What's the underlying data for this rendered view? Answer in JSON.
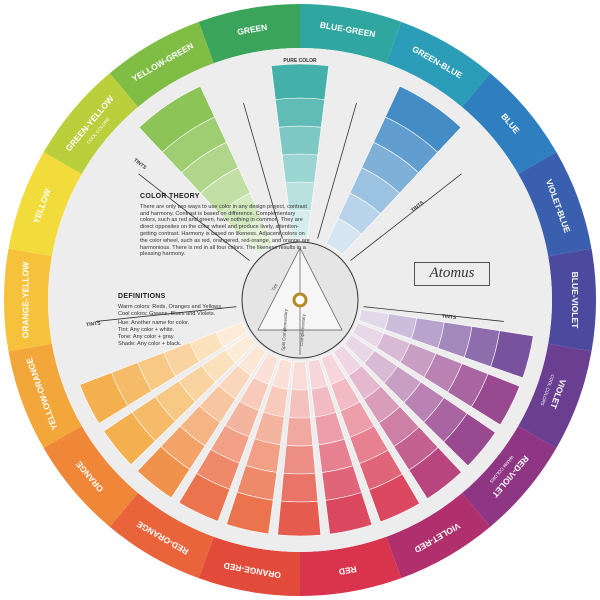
{
  "rim": {
    "segments": [
      {
        "label": "BLUE-GREEN",
        "color": "#2fa7a0"
      },
      {
        "label": "GREEN-BLUE",
        "color": "#2b9db8"
      },
      {
        "label": "BLUE",
        "color": "#2f7fc0"
      },
      {
        "label": "VIOLET-BLUE",
        "color": "#3a5fae"
      },
      {
        "label": "BLUE-VIOLET",
        "color": "#4b4a9e"
      },
      {
        "label": "VIOLET",
        "sublabel": "COOL COLORS",
        "color": "#6a3f92"
      },
      {
        "label": "RED-VIOLET",
        "sublabel": "WARM COLORS",
        "color": "#8e3583"
      },
      {
        "label": "VIOLET-RED",
        "color": "#b0306e"
      },
      {
        "label": "RED",
        "color": "#d8344d"
      },
      {
        "label": "ORANGE-RED",
        "color": "#e24a3a"
      },
      {
        "label": "RED-ORANGE",
        "color": "#e9643a"
      },
      {
        "label": "ORANGE",
        "color": "#ef8638"
      },
      {
        "label": "YELLOW-ORANGE",
        "color": "#f3a63a"
      },
      {
        "label": "ORANGE-YELLOW",
        "color": "#f6c23c"
      },
      {
        "label": "YELLOW",
        "color": "#f2dc3c"
      },
      {
        "label": "GREEN-YELLOW",
        "sublabel": "COOL COLORS",
        "color": "#b9cf3c"
      },
      {
        "label": "YELLOW-GREEN",
        "color": "#7fbd45"
      },
      {
        "label": "GREEN",
        "color": "#3aa55a"
      }
    ]
  },
  "wheel_labels": {
    "pure_color": "PURE COLOR",
    "tints_left": "TINTS",
    "tints_right": "TINTS",
    "tints_lower_left": "TINTS",
    "tints_lower_right": "TINTS"
  },
  "center": {
    "tint": "Tint",
    "split_complementary": "Split Complementary",
    "complementary": "Complementary"
  },
  "brand": "Atomus",
  "theory": {
    "title": "COLOR THEORY",
    "body": "There are only two ways to use color in any design project, contrast and harmony. Contrast is based on difference. Complementary colors, such as red and green, have nothing in common. They are direct opposites on the color wheel and produce lively, attention-getting contrast. Harmony is based on likeness. Adjacent colors on the color wheel, such as red, orangered, red-orange, and orange are harmonious. There is red in all four colors. The likeness results in a pleasing harmony."
  },
  "definitions": {
    "title": "DEFINITIONS",
    "items": [
      "Warm colors: Reds, Oranges and Yellows.",
      "Cool colors: Greens, Blues and Violets.",
      "Hue: Another name for color.",
      "Tint: Any color + white.",
      "Tone: Any color + gray.",
      "Shade: Any color + black."
    ]
  }
}
